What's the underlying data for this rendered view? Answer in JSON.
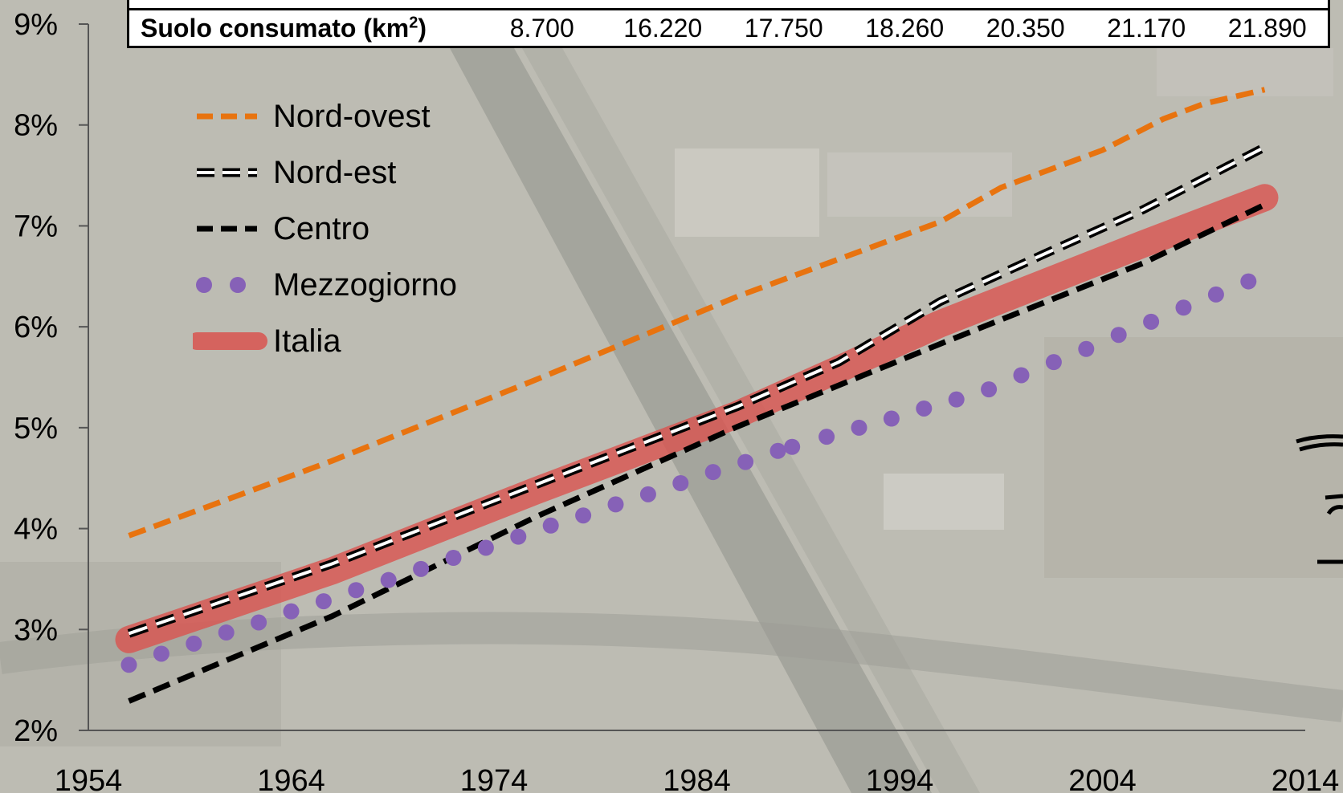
{
  "chart_data": {
    "type": "line",
    "x": [
      1956,
      2012
    ],
    "xlim": [
      1954,
      2014
    ],
    "ylim": [
      0.02,
      0.09
    ],
    "x_ticks": [
      "1954",
      "1964",
      "1974",
      "1984",
      "1994",
      "2004",
      "2014"
    ],
    "y_ticks": [
      "2%",
      "3%",
      "4%",
      "5%",
      "6%",
      "7%",
      "8%",
      "9%"
    ],
    "grid": false,
    "legend_position": "top-left",
    "series": [
      {
        "name": "Nord-ovest",
        "style": "dashed",
        "color": "#e8730f",
        "points": [
          [
            1956,
            0.0393
          ],
          [
            1966,
            0.0467
          ],
          [
            1976,
            0.0547
          ],
          [
            1986,
            0.063
          ],
          [
            1996,
            0.0704
          ],
          [
            1999,
            0.0738
          ],
          [
            2004,
            0.0775
          ],
          [
            2007,
            0.0806
          ],
          [
            2009,
            0.0821
          ],
          [
            2012,
            0.0835
          ]
        ]
      },
      {
        "name": "Nord-est",
        "style": "outlined-dashed",
        "color": "#000000",
        "points": [
          [
            1956,
            0.0296
          ],
          [
            1966,
            0.0365
          ],
          [
            1976,
            0.0443
          ],
          [
            1986,
            0.0521
          ],
          [
            1991,
            0.0565
          ],
          [
            1996,
            0.0625
          ],
          [
            2001,
            0.0671
          ],
          [
            2006,
            0.0716
          ],
          [
            2012,
            0.0778
          ]
        ]
      },
      {
        "name": "Centro",
        "style": "dashed",
        "color": "#000000",
        "points": [
          [
            1956,
            0.0229
          ],
          [
            1966,
            0.0313
          ],
          [
            1976,
            0.0411
          ],
          [
            1986,
            0.0501
          ],
          [
            1996,
            0.0583
          ],
          [
            2006,
            0.0663
          ],
          [
            2012,
            0.0721
          ]
        ]
      },
      {
        "name": "Mezzogiorno",
        "style": "dotted",
        "color": "#8661b7",
        "points": [
          [
            1956,
            0.0265
          ],
          [
            1957.6,
            0.0276
          ],
          [
            1959.2,
            0.0286
          ],
          [
            1960.8,
            0.0297
          ],
          [
            1962.4,
            0.0307
          ],
          [
            1964,
            0.0318
          ],
          [
            1965.6,
            0.0328
          ],
          [
            1967.2,
            0.0339
          ],
          [
            1968.8,
            0.0349
          ],
          [
            1970.4,
            0.036
          ],
          [
            1972,
            0.0371
          ],
          [
            1973.6,
            0.0381
          ],
          [
            1975.2,
            0.0392
          ],
          [
            1976.8,
            0.0403
          ],
          [
            1978.4,
            0.0413
          ],
          [
            1980,
            0.0424
          ],
          [
            1981.6,
            0.0434
          ],
          [
            1983.2,
            0.0445
          ],
          [
            1984.8,
            0.0456
          ],
          [
            1986.4,
            0.0466
          ],
          [
            1988,
            0.0477
          ],
          [
            1988.7,
            0.0481
          ],
          [
            1990.4,
            0.0491
          ],
          [
            1992,
            0.05
          ],
          [
            1993.6,
            0.0509
          ],
          [
            1995.2,
            0.0519
          ],
          [
            1996.8,
            0.0528
          ],
          [
            1998.4,
            0.0538
          ],
          [
            2000,
            0.0552
          ],
          [
            2001.6,
            0.0565
          ],
          [
            2003.2,
            0.0578
          ],
          [
            2004.8,
            0.0592
          ],
          [
            2006.4,
            0.0605
          ],
          [
            2008,
            0.0619
          ],
          [
            2009.6,
            0.0632
          ],
          [
            2011.2,
            0.0645
          ]
        ]
      },
      {
        "name": "Italia",
        "style": "thick-band",
        "color": "#d9534f",
        "points": [
          [
            1956,
            0.029
          ],
          [
            1966,
            0.0358
          ],
          [
            1976,
            0.0437
          ],
          [
            1986,
            0.0513
          ],
          [
            1996,
            0.0603
          ],
          [
            2006,
            0.0682
          ],
          [
            2012,
            0.0728
          ]
        ]
      }
    ],
    "table": {
      "row_label": "Suolo consumato (km²)",
      "row_label_base": "Suolo consumato (km",
      "row_label_sup": "2",
      "row_label_end": ")",
      "values": [
        "8.700",
        "16.220",
        "17.750",
        "18.260",
        "20.350",
        "21.170",
        "21.890"
      ]
    }
  }
}
